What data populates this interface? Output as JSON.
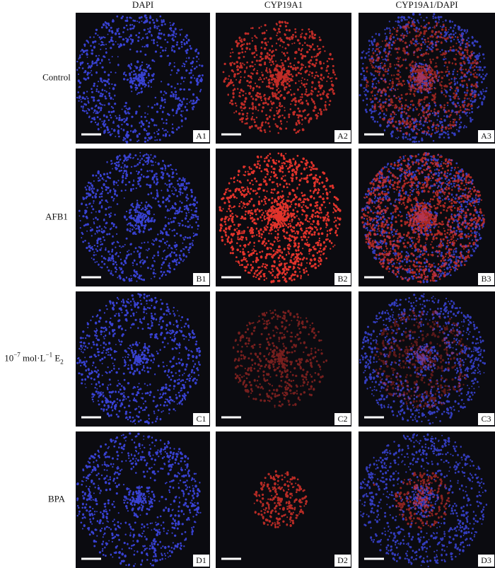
{
  "columns": [
    "DAPI",
    "CYP19A1",
    "CYP19A1/DAPI"
  ],
  "rows": [
    {
      "label": "Control",
      "panels": [
        "A1",
        "A2",
        "A3"
      ]
    },
    {
      "label": "AFB1",
      "panels": [
        "B1",
        "B2",
        "B3"
      ]
    },
    {
      "label": [
        "10",
        "−7",
        " mol·L",
        "−1",
        " E",
        "2"
      ],
      "panels": [
        "C1",
        "C2",
        "C3"
      ]
    },
    {
      "label": "BPA",
      "panels": [
        "D1",
        "D2",
        "D3"
      ]
    }
  ]
}
